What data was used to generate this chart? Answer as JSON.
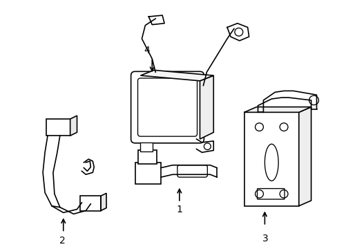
{
  "bg_color": "#ffffff",
  "line_color": "#000000",
  "line_width": 1.2,
  "figsize": [
    4.89,
    3.6
  ],
  "dpi": 100
}
